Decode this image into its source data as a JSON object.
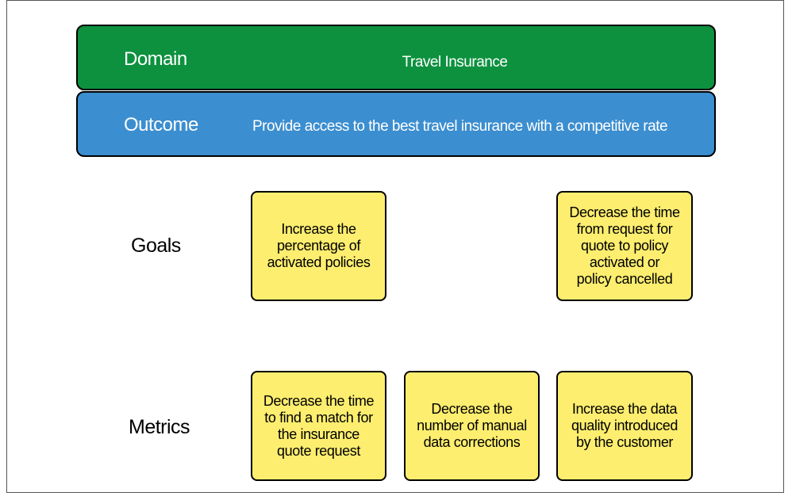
{
  "domain": {
    "label": "Domain",
    "text": "Travel Insurance"
  },
  "outcome": {
    "label": "Outcome",
    "text": "Provide access to the best travel insurance with a competitive rate"
  },
  "goals": {
    "label": "Goals",
    "items": [
      "Increase the\npercentage of\nactivated policies",
      "Decrease the time\nfrom request for\nquote to policy\nactivated or\npolicy cancelled"
    ]
  },
  "metrics": {
    "label": "Metrics",
    "items": [
      "Decrease the time\nto find a match for\nthe insurance\nquote request",
      "Decrease the\nnumber of manual\ndata corrections",
      "Increase the data\nquality introduced\nby the customer"
    ]
  },
  "colors": {
    "domain": "#0d913f",
    "outcome": "#3b8ed0",
    "card": "#fdee6f"
  }
}
